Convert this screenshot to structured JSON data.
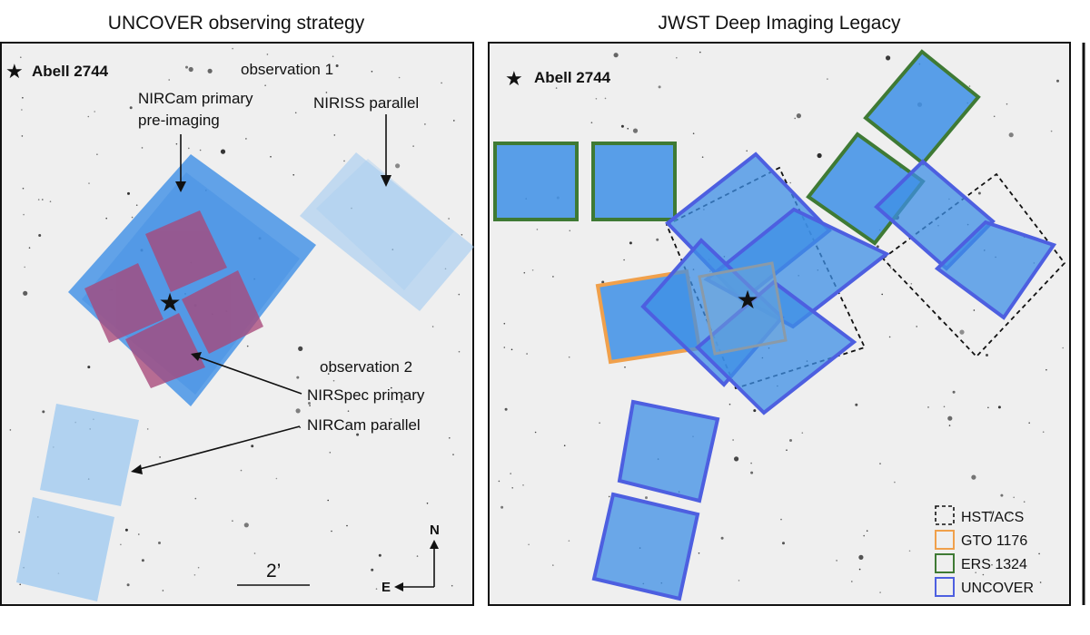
{
  "panels": {
    "left_title": "UNCOVER observing strategy",
    "right_title": "JWST Deep Imaging Legacy"
  },
  "left": {
    "target": "Abell 2744",
    "obs1": "observation 1",
    "nircam_primary_line1": "NIRCam primary",
    "nircam_primary_line2": "pre-imaging",
    "niriss": "NIRISS parallel",
    "obs2": "observation 2",
    "nirspec": "NIRSpec primary",
    "nircam_parallel": "NIRCam parallel",
    "scale": "2’",
    "north": "N",
    "east": "E"
  },
  "right": {
    "target": "Abell 2744",
    "legend": [
      {
        "label": "HST/ACS",
        "color": "#111111",
        "dashed": true
      },
      {
        "label": "GTO 1176",
        "color": "#f0a04b",
        "dashed": false
      },
      {
        "label": "ERS 1324",
        "color": "#3f7a34",
        "dashed": false
      },
      {
        "label": "UNCOVER",
        "color": "#4d5fe0",
        "dashed": false
      }
    ]
  },
  "colors": {
    "nircam_fill": "#3d8fe6",
    "parallel_fill": "#8ec0ef",
    "nirspec_fill": "#a8487a",
    "uncover_edge": "#4d5fe0",
    "gto_edge": "#f0a04b",
    "ers_edge": "#3f7a34"
  }
}
